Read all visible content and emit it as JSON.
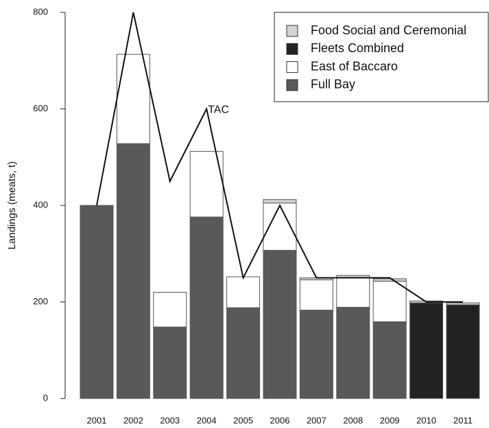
{
  "chart_data": {
    "type": "bar",
    "stacked": true,
    "y_label": "Landings (meats, t)",
    "categories": [
      "2001",
      "2002",
      "2003",
      "2004",
      "2005",
      "2006",
      "2007",
      "2008",
      "2009",
      "2010",
      "2011"
    ],
    "series": [
      {
        "name": "Food Social and Ceremonial",
        "color": "#d3d3d3",
        "values": [
          null,
          null,
          null,
          null,
          null,
          7,
          4,
          5,
          5,
          4,
          4
        ]
      },
      {
        "name": "Fleets Combined",
        "color": "#222222",
        "values": [
          null,
          null,
          null,
          null,
          null,
          null,
          null,
          null,
          null,
          198,
          194
        ]
      },
      {
        "name": "East of Baccaro",
        "color": "#ffffff",
        "values": [
          null,
          185,
          72,
          136,
          64,
          98,
          63,
          61,
          84,
          null,
          null
        ]
      },
      {
        "name": "Full Bay",
        "color": "#595959",
        "values": [
          400,
          528,
          148,
          376,
          188,
          307,
          183,
          189,
          159,
          null,
          null
        ]
      }
    ],
    "line": {
      "name": "TAC",
      "color": "#111111",
      "values": [
        400,
        800,
        450,
        600,
        250,
        400,
        250,
        250,
        250,
        200,
        200
      ]
    },
    "ylim": [
      0,
      800
    ],
    "yticks": [
      0,
      200,
      400,
      600,
      800
    ],
    "grid": false,
    "legend": "top-right"
  }
}
